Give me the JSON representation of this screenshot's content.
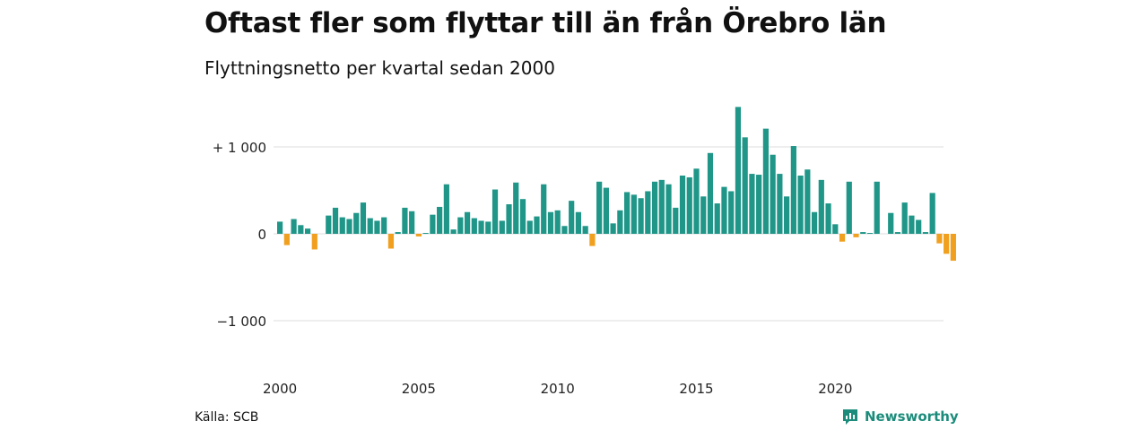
{
  "header": {
    "title": "Oftast fler som flyttar till än från Örebro län",
    "subtitle": "Flyttningsnetto per kvartal sedan 2000"
  },
  "footer": {
    "source": "Källa: SCB",
    "brand": "Newsworthy",
    "brand_icon": "newsworthy-logo-icon"
  },
  "colors": {
    "positive": "#1f9688",
    "negative": "#f0a01e",
    "grid": "#dddddd",
    "brand": "#1b8c7b"
  },
  "chart_data": {
    "type": "bar",
    "title": "Oftast fler som flyttar till än från Örebro län",
    "subtitle": "Flyttningsnetto per kvartal sedan 2000",
    "x_start": "2000 Q1",
    "frequency": "quarterly",
    "x_ticks": [
      "2000",
      "2005",
      "2010",
      "2015",
      "2020"
    ],
    "y_ticks": [
      {
        "value": 1000,
        "label": "+ 1 000"
      },
      {
        "value": 0,
        "label": "0"
      },
      {
        "value": -1000,
        "label": "−1 000"
      }
    ],
    "ylim": [
      -1400,
      1500
    ],
    "grid": true,
    "values": [
      140,
      -130,
      170,
      100,
      60,
      -180,
      0,
      210,
      300,
      190,
      170,
      240,
      360,
      180,
      150,
      190,
      -170,
      20,
      300,
      260,
      -30,
      10,
      220,
      310,
      570,
      50,
      190,
      250,
      180,
      150,
      140,
      510,
      150,
      340,
      590,
      400,
      150,
      200,
      570,
      250,
      270,
      90,
      380,
      250,
      90,
      -140,
      600,
      530,
      120,
      270,
      480,
      450,
      410,
      490,
      600,
      620,
      570,
      300,
      670,
      650,
      750,
      430,
      930,
      350,
      540,
      490,
      1460,
      1110,
      690,
      680,
      1210,
      910,
      690,
      430,
      1010,
      670,
      740,
      250,
      620,
      350,
      110,
      -90,
      600,
      -40,
      20,
      10,
      600,
      0,
      240,
      20,
      360,
      210,
      160,
      20,
      470,
      -110,
      -230,
      -310
    ]
  }
}
